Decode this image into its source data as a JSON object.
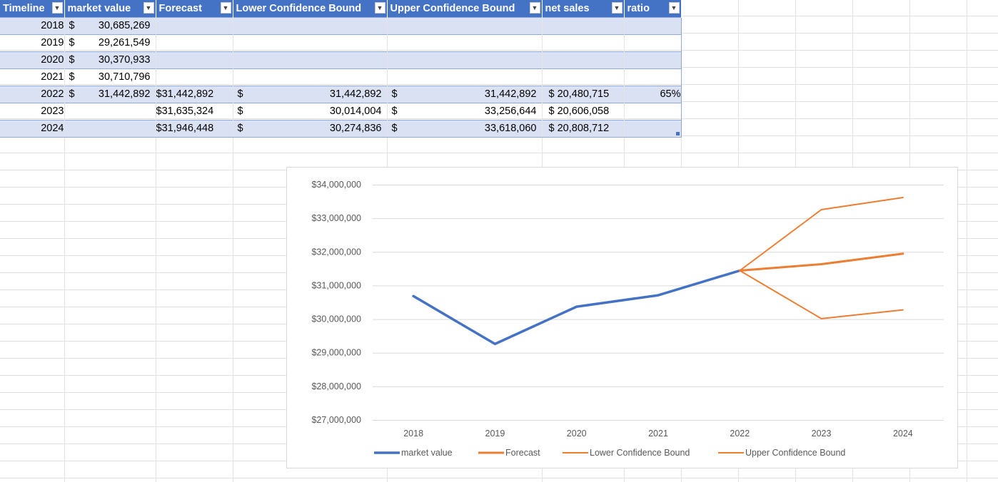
{
  "table": {
    "headers": [
      "Timeline",
      "market value",
      "Forecast",
      "Lower Confidence Bound",
      "Upper Confidence Bound",
      "net sales",
      "ratio"
    ],
    "currency_symbol": "$",
    "rows": [
      {
        "year": "2018",
        "market_value": "30,685,269",
        "forecast": "",
        "lower": "",
        "upper": "",
        "net_sales": "",
        "ratio": ""
      },
      {
        "year": "2019",
        "market_value": "29,261,549",
        "forecast": "",
        "lower": "",
        "upper": "",
        "net_sales": "",
        "ratio": ""
      },
      {
        "year": "2020",
        "market_value": "30,370,933",
        "forecast": "",
        "lower": "",
        "upper": "",
        "net_sales": "",
        "ratio": ""
      },
      {
        "year": "2021",
        "market_value": "30,710,796",
        "forecast": "",
        "lower": "",
        "upper": "",
        "net_sales": "",
        "ratio": ""
      },
      {
        "year": "2022",
        "market_value": "31,442,892",
        "forecast": "$31,442,892",
        "lower": "31,442,892",
        "upper": "31,442,892",
        "net_sales": "20,480,715",
        "ratio": "65%"
      },
      {
        "year": "2023",
        "market_value": "",
        "forecast": "$31,635,324",
        "lower": "30,014,004",
        "upper": "33,256,644",
        "net_sales": "20,606,058",
        "ratio": ""
      },
      {
        "year": "2024",
        "market_value": "",
        "forecast": "$31,946,448",
        "lower": "30,274,836",
        "upper": "33,618,060",
        "net_sales": "20,808,712",
        "ratio": ""
      }
    ]
  },
  "chart_data": {
    "type": "line",
    "x": [
      "2018",
      "2019",
      "2020",
      "2021",
      "2022",
      "2023",
      "2024"
    ],
    "ylim": [
      27000000,
      34000000
    ],
    "y_ticks": [
      "$27,000,000",
      "$28,000,000",
      "$29,000,000",
      "$30,000,000",
      "$31,000,000",
      "$32,000,000",
      "$33,000,000",
      "$34,000,000"
    ],
    "y_tick_values": [
      27000000,
      28000000,
      29000000,
      30000000,
      31000000,
      32000000,
      33000000,
      34000000
    ],
    "grid": true,
    "legend_position": "bottom",
    "series": [
      {
        "name": "market value",
        "color": "#4472c4",
        "values": [
          30685269,
          29261549,
          30370933,
          30710796,
          31442892,
          null,
          null
        ]
      },
      {
        "name": "Forecast",
        "color": "#ed7d31",
        "values": [
          null,
          null,
          null,
          null,
          31442892,
          31635324,
          31946448
        ]
      },
      {
        "name": "Lower Confidence Bound",
        "color": "#ed7d31",
        "values": [
          null,
          null,
          null,
          null,
          31442892,
          30014004,
          30274836
        ]
      },
      {
        "name": "Upper Confidence Bound",
        "color": "#ed7d31",
        "values": [
          null,
          null,
          null,
          null,
          31442892,
          33256644,
          33618060
        ]
      }
    ]
  }
}
